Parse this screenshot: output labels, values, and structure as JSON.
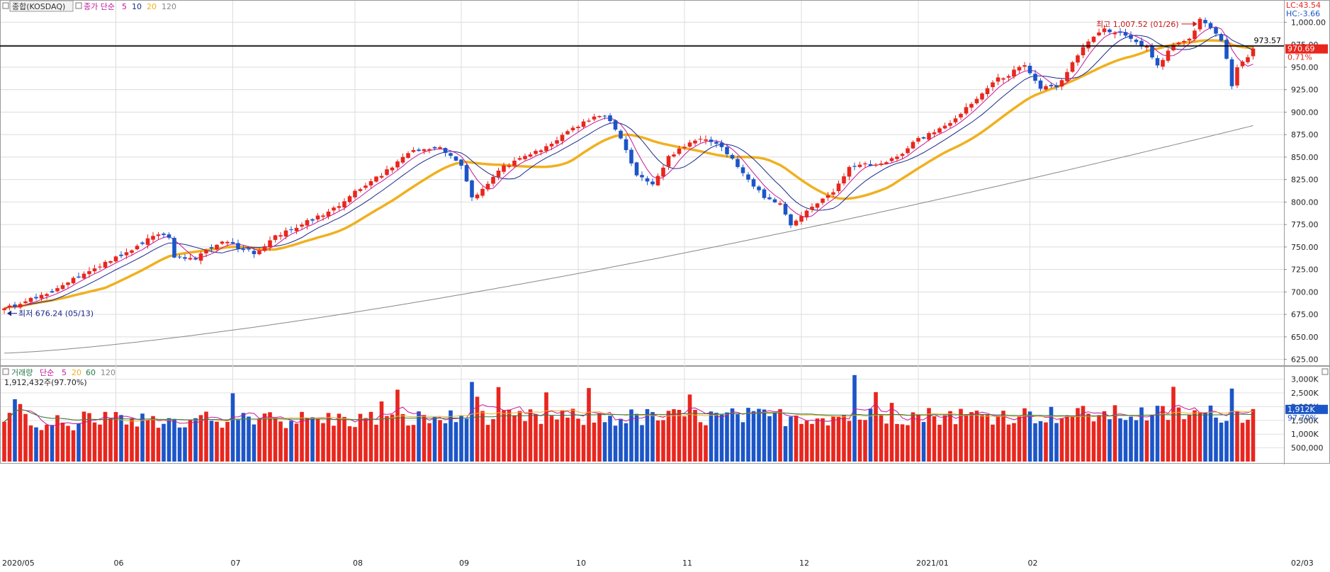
{
  "price_panel": {
    "legend": {
      "name": "종합(KOSDAQ)",
      "ma_label": "종가 단순",
      "periods": [
        "5",
        "10",
        "20",
        "120"
      ]
    },
    "lc_label": "LC:43.54",
    "hc_label": "HC:-3.66",
    "last_price_label": "970.69",
    "change_label": "0.71%",
    "ref_line_label": "973.57",
    "ref_line_value": 973.57,
    "high_annotation": "최고 1,007.52 (01/26)",
    "low_annotation": "최저 676.24 (05/13)",
    "y_ticks": [
      "1,000.00",
      "975.00",
      "950.00",
      "925.00",
      "900.00",
      "875.00",
      "850.00",
      "825.00",
      "800.00",
      "775.00",
      "750.00",
      "725.00",
      "700.00",
      "675.00",
      "650.00",
      "625.00"
    ]
  },
  "volume_panel": {
    "legend": {
      "name": "거래량",
      "ma_label": "단순",
      "periods": [
        "5",
        "20",
        "60",
        "120"
      ]
    },
    "info": "1,912,432주(97.70%)",
    "last_volume_label": "1,912K",
    "pct_label": "97.70%",
    "y_ticks": [
      "3,000K",
      "2,500K",
      "2,000K",
      "1,500K",
      "1,000K",
      "500,000"
    ]
  },
  "x_labels": [
    "2020/05",
    "06",
    "07",
    "08",
    "09",
    "10",
    "11",
    "12",
    "2021/01",
    "02",
    "02/03"
  ],
  "colors": {
    "up": "#e8261e",
    "down": "#1c55c8",
    "ma5": "#c2189a",
    "ma10": "#1a2a8a",
    "ma20": "#f0b020",
    "ma120": "#888888",
    "ref_line": "#000000"
  },
  "chart_data": {
    "type": "candlestick",
    "period": "2020-05 to 2021-02-03 (daily)",
    "ylim": [
      620,
      1020
    ],
    "high": {
      "value": 1007.52,
      "date": "01/26"
    },
    "low": {
      "value": 676.24,
      "date": "05/13"
    },
    "last_close": 970.69,
    "ref_line": 973.57,
    "volume_ylim": [
      0,
      3300000
    ],
    "volume_last": 1912432,
    "ma120_start": 632,
    "ma120_end": 885,
    "keypoints": [
      [
        0,
        682
      ],
      [
        8,
        697
      ],
      [
        16,
        724
      ],
      [
        23,
        743
      ],
      [
        28,
        762
      ],
      [
        31,
        762
      ],
      [
        32,
        738
      ],
      [
        36,
        737
      ],
      [
        41,
        757
      ],
      [
        47,
        743
      ],
      [
        51,
        762
      ],
      [
        56,
        776
      ],
      [
        61,
        788
      ],
      [
        66,
        811
      ],
      [
        71,
        831
      ],
      [
        77,
        858
      ],
      [
        82,
        861
      ],
      [
        86,
        842
      ],
      [
        88,
        805
      ],
      [
        90,
        815
      ],
      [
        94,
        840
      ],
      [
        101,
        858
      ],
      [
        106,
        878
      ],
      [
        111,
        896
      ],
      [
        114,
        892
      ],
      [
        116,
        870
      ],
      [
        119,
        830
      ],
      [
        122,
        818
      ],
      [
        125,
        850
      ],
      [
        129,
        867
      ],
      [
        131,
        871
      ],
      [
        135,
        862
      ],
      [
        139,
        832
      ],
      [
        143,
        805
      ],
      [
        146,
        800
      ],
      [
        148,
        776
      ],
      [
        151,
        790
      ],
      [
        154,
        805
      ],
      [
        156,
        812
      ],
      [
        159,
        838
      ],
      [
        163,
        842
      ],
      [
        166,
        846
      ],
      [
        169,
        855
      ],
      [
        172,
        870
      ],
      [
        176,
        880
      ],
      [
        180,
        898
      ],
      [
        183,
        915
      ],
      [
        186,
        935
      ],
      [
        189,
        942
      ],
      [
        192,
        953
      ],
      [
        195,
        927
      ],
      [
        198,
        927
      ],
      [
        201,
        955
      ],
      [
        204,
        980
      ],
      [
        207,
        992
      ],
      [
        210,
        988
      ],
      [
        213,
        978
      ],
      [
        215,
        972
      ],
      [
        217,
        950
      ],
      [
        220,
        975
      ],
      [
        223,
        982
      ],
      [
        225,
        1003
      ],
      [
        227,
        993
      ],
      [
        229,
        980
      ],
      [
        230,
        960
      ],
      [
        231,
        930
      ],
      [
        232,
        950
      ],
      [
        233,
        958
      ],
      [
        234,
        963
      ],
      [
        235,
        970.69
      ]
    ]
  }
}
